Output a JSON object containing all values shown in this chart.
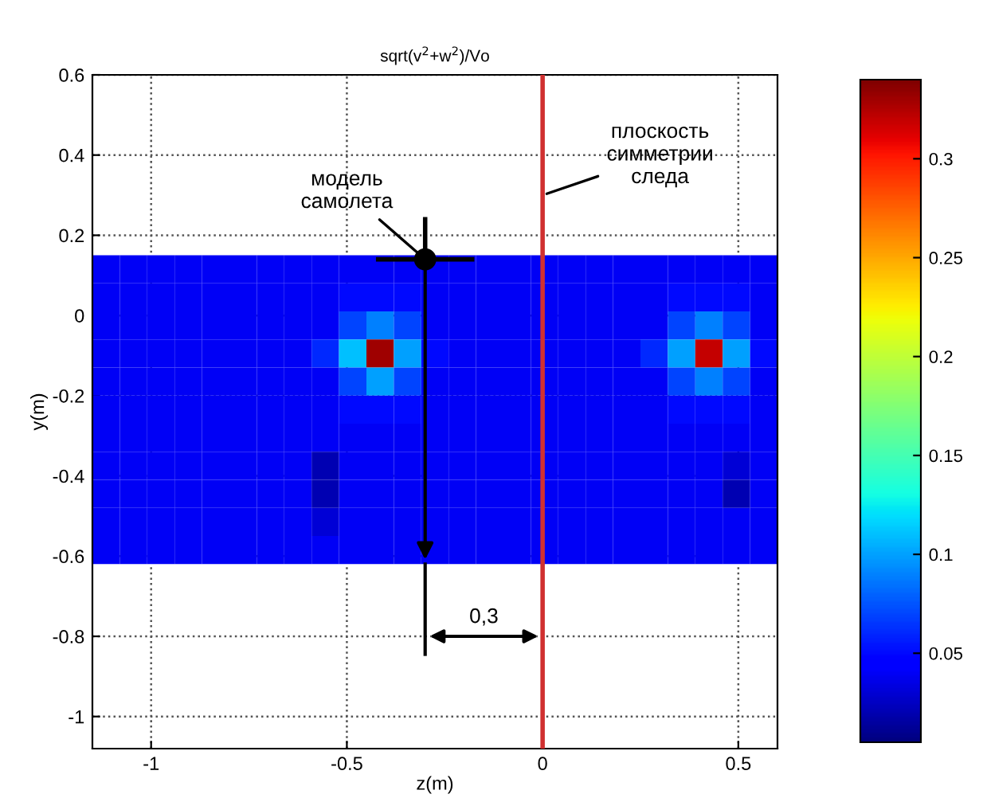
{
  "chart_data": {
    "type": "heatmap",
    "title": "sqrt(v$^{2}$+w$^{2}$)/Vo",
    "xlabel": "z(m)",
    "ylabel": "y(m)",
    "x": [
      -1.115,
      -1.045,
      -0.975,
      -0.905,
      -0.835,
      -0.765,
      -0.695,
      -0.625,
      -0.555,
      -0.485,
      -0.415,
      -0.345,
      -0.275,
      -0.205,
      -0.135,
      -0.065,
      0.005,
      0.075,
      0.145,
      0.215,
      0.285,
      0.355,
      0.425,
      0.495,
      0.565
    ],
    "y": [
      0.115,
      0.045,
      -0.025,
      -0.095,
      -0.165,
      -0.235,
      -0.305,
      -0.375,
      -0.445,
      -0.515,
      -0.585
    ],
    "cells": [
      [
        0.04,
        0.04,
        0.04,
        0.04,
        0.04,
        0.04,
        0.04,
        0.04,
        0.04,
        0.04,
        0.04,
        0.04,
        0.04,
        0.04,
        0.04,
        0.04,
        0.04,
        0.04,
        0.04,
        0.04,
        0.04,
        0.04,
        0.04,
        0.04,
        0.04
      ],
      [
        0.04,
        0.04,
        0.04,
        0.04,
        0.04,
        0.04,
        0.04,
        0.04,
        0.04,
        0.05,
        0.05,
        0.05,
        0.04,
        0.04,
        0.04,
        0.04,
        0.04,
        0.04,
        0.04,
        0.04,
        0.04,
        0.05,
        0.05,
        0.05,
        0.04
      ],
      [
        0.04,
        0.04,
        0.04,
        0.04,
        0.04,
        0.04,
        0.04,
        0.04,
        0.04,
        0.07,
        0.09,
        0.07,
        0.04,
        0.04,
        0.04,
        0.04,
        0.04,
        0.04,
        0.04,
        0.04,
        0.04,
        0.07,
        0.09,
        0.07,
        0.04
      ],
      [
        0.04,
        0.04,
        0.04,
        0.04,
        0.04,
        0.04,
        0.04,
        0.04,
        0.06,
        0.11,
        0.33,
        0.1,
        0.05,
        0.04,
        0.04,
        0.04,
        0.04,
        0.04,
        0.04,
        0.04,
        0.06,
        0.1,
        0.32,
        0.1,
        0.05
      ],
      [
        0.04,
        0.04,
        0.04,
        0.04,
        0.04,
        0.04,
        0.04,
        0.04,
        0.04,
        0.07,
        0.1,
        0.07,
        0.04,
        0.04,
        0.04,
        0.04,
        0.04,
        0.04,
        0.04,
        0.04,
        0.04,
        0.07,
        0.09,
        0.07,
        0.04
      ],
      [
        0.04,
        0.04,
        0.04,
        0.04,
        0.04,
        0.04,
        0.04,
        0.04,
        0.04,
        0.05,
        0.05,
        0.05,
        0.04,
        0.04,
        0.04,
        0.04,
        0.04,
        0.04,
        0.04,
        0.04,
        0.04,
        0.05,
        0.05,
        0.05,
        0.04
      ],
      [
        0.04,
        0.04,
        0.04,
        0.04,
        0.04,
        0.04,
        0.04,
        0.04,
        0.04,
        0.04,
        0.04,
        0.04,
        0.04,
        0.04,
        0.04,
        0.04,
        0.04,
        0.04,
        0.04,
        0.04,
        0.04,
        0.04,
        0.04,
        0.04,
        0.04
      ],
      [
        0.04,
        0.04,
        0.04,
        0.04,
        0.04,
        0.04,
        0.04,
        0.04,
        0.02,
        0.04,
        0.04,
        0.04,
        0.04,
        0.04,
        0.04,
        0.04,
        0.04,
        0.04,
        0.04,
        0.04,
        0.04,
        0.04,
        0.04,
        0.03,
        0.04
      ],
      [
        0.04,
        0.04,
        0.04,
        0.04,
        0.04,
        0.04,
        0.04,
        0.04,
        0.02,
        0.04,
        0.04,
        0.04,
        0.04,
        0.04,
        0.04,
        0.04,
        0.04,
        0.04,
        0.04,
        0.04,
        0.04,
        0.04,
        0.04,
        0.02,
        0.04
      ],
      [
        0.04,
        0.04,
        0.04,
        0.04,
        0.04,
        0.04,
        0.04,
        0.04,
        0.03,
        0.04,
        0.04,
        0.04,
        0.04,
        0.04,
        0.04,
        0.04,
        0.04,
        0.04,
        0.04,
        0.04,
        0.04,
        0.04,
        0.04,
        0.04,
        0.04
      ],
      [
        0.04,
        0.04,
        0.04,
        0.04,
        0.04,
        0.04,
        0.04,
        0.04,
        0.04,
        0.04,
        0.04,
        0.04,
        0.04,
        0.04,
        0.04,
        0.04,
        0.04,
        0.04,
        0.04,
        0.04,
        0.04,
        0.04,
        0.04,
        0.04,
        0.04
      ]
    ],
    "clim": [
      0.005,
      0.34
    ],
    "cticks": [
      0.05,
      0.1,
      0.15,
      0.2,
      0.25,
      0.3
    ],
    "xlim": [
      -1.15,
      0.6
    ],
    "xticks": [
      -1,
      -0.5,
      0,
      0.5
    ],
    "ylim": [
      -1.08,
      0.6
    ],
    "yticks": [
      -1,
      -0.8,
      -0.6,
      -0.4,
      -0.2,
      0,
      0.2,
      0.4,
      0.6
    ],
    "grid": true,
    "ref_lines": [
      {
        "axis": "x",
        "value": 0,
        "color": "#d03030"
      }
    ],
    "annotations": [
      {
        "text": "модель\nсамолета",
        "x": -0.3,
        "y": 0.14
      },
      {
        "text": "плоскость\nсимметрии\nследа",
        "x": 0,
        "y": 0.3
      },
      "0,3"
    ]
  }
}
